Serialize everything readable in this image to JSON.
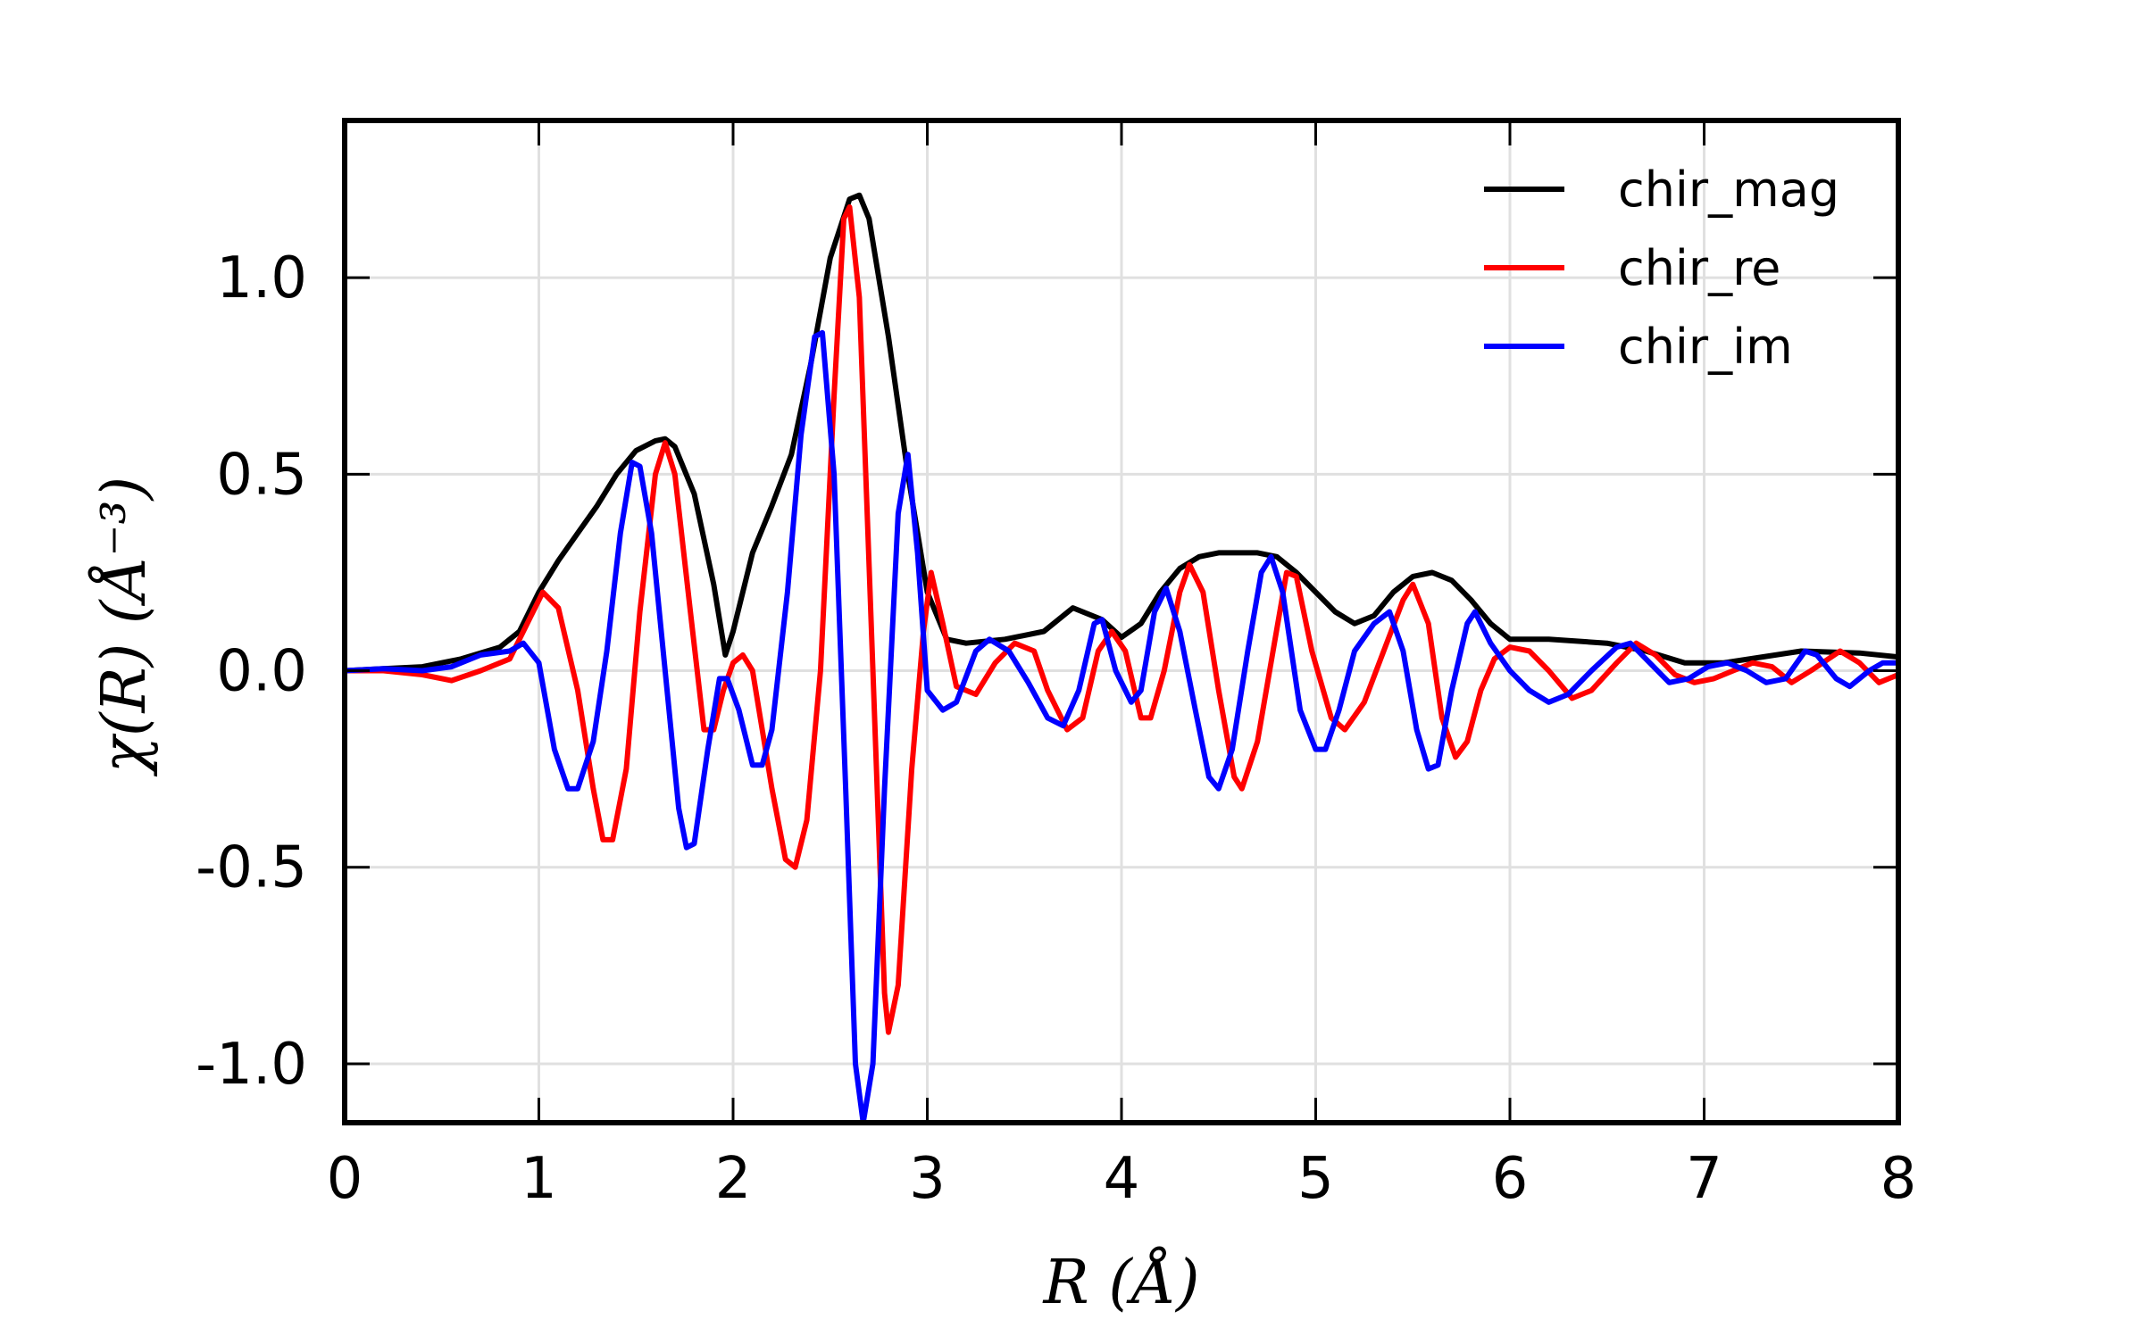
{
  "chart_data": {
    "type": "line",
    "xlabel": "R (Å)",
    "ylabel": "χ(R) (Å⁻³)",
    "xlim": [
      0,
      8
    ],
    "ylim": [
      -1.15,
      1.4
    ],
    "xticks": [
      0,
      1,
      2,
      3,
      4,
      5,
      6,
      7,
      8
    ],
    "xtick_labels": [
      "0",
      "1",
      "2",
      "3",
      "4",
      "5",
      "6",
      "7",
      "8"
    ],
    "yticks": [
      -1.0,
      -0.5,
      0.0,
      0.5,
      1.0
    ],
    "ytick_labels": [
      "-1.0",
      "-0.5",
      "0.0",
      "0.5",
      "1.0"
    ],
    "grid": true,
    "legend_position": "top-right",
    "series": [
      {
        "name": "chir_mag",
        "color": "#000000",
        "points": [
          [
            0,
            0
          ],
          [
            0.2,
            0.005
          ],
          [
            0.4,
            0.01
          ],
          [
            0.6,
            0.03
          ],
          [
            0.8,
            0.06
          ],
          [
            0.9,
            0.1
          ],
          [
            1.0,
            0.2
          ],
          [
            1.1,
            0.28
          ],
          [
            1.2,
            0.35
          ],
          [
            1.3,
            0.42
          ],
          [
            1.4,
            0.5
          ],
          [
            1.5,
            0.56
          ],
          [
            1.6,
            0.585
          ],
          [
            1.65,
            0.59
          ],
          [
            1.7,
            0.57
          ],
          [
            1.8,
            0.45
          ],
          [
            1.9,
            0.22
          ],
          [
            1.96,
            0.04
          ],
          [
            2.0,
            0.1
          ],
          [
            2.1,
            0.3
          ],
          [
            2.2,
            0.42
          ],
          [
            2.3,
            0.55
          ],
          [
            2.4,
            0.78
          ],
          [
            2.5,
            1.05
          ],
          [
            2.6,
            1.2
          ],
          [
            2.65,
            1.21
          ],
          [
            2.7,
            1.15
          ],
          [
            2.8,
            0.85
          ],
          [
            2.9,
            0.5
          ],
          [
            3.0,
            0.2
          ],
          [
            3.1,
            0.08
          ],
          [
            3.2,
            0.07
          ],
          [
            3.4,
            0.08
          ],
          [
            3.6,
            0.1
          ],
          [
            3.75,
            0.16
          ],
          [
            3.9,
            0.13
          ],
          [
            4.0,
            0.085
          ],
          [
            4.1,
            0.12
          ],
          [
            4.2,
            0.2
          ],
          [
            4.3,
            0.26
          ],
          [
            4.4,
            0.29
          ],
          [
            4.5,
            0.3
          ],
          [
            4.7,
            0.3
          ],
          [
            4.8,
            0.29
          ],
          [
            4.9,
            0.25
          ],
          [
            5.0,
            0.2
          ],
          [
            5.1,
            0.15
          ],
          [
            5.2,
            0.12
          ],
          [
            5.3,
            0.14
          ],
          [
            5.4,
            0.2
          ],
          [
            5.5,
            0.24
          ],
          [
            5.6,
            0.25
          ],
          [
            5.7,
            0.23
          ],
          [
            5.8,
            0.18
          ],
          [
            5.9,
            0.12
          ],
          [
            6.0,
            0.08
          ],
          [
            6.2,
            0.08
          ],
          [
            6.5,
            0.07
          ],
          [
            6.7,
            0.05
          ],
          [
            6.9,
            0.02
          ],
          [
            7.1,
            0.02
          ],
          [
            7.3,
            0.035
          ],
          [
            7.5,
            0.05
          ],
          [
            7.8,
            0.045
          ],
          [
            8.0,
            0.035
          ]
        ]
      },
      {
        "name": "chir_re",
        "color": "#ff0000",
        "points": [
          [
            0,
            0
          ],
          [
            0.2,
            0.0
          ],
          [
            0.4,
            -0.01
          ],
          [
            0.55,
            -0.025
          ],
          [
            0.7,
            0.0
          ],
          [
            0.85,
            0.03
          ],
          [
            0.95,
            0.13
          ],
          [
            1.02,
            0.2
          ],
          [
            1.1,
            0.16
          ],
          [
            1.2,
            -0.05
          ],
          [
            1.28,
            -0.3
          ],
          [
            1.33,
            -0.43
          ],
          [
            1.38,
            -0.43
          ],
          [
            1.45,
            -0.25
          ],
          [
            1.52,
            0.15
          ],
          [
            1.6,
            0.5
          ],
          [
            1.65,
            0.58
          ],
          [
            1.7,
            0.5
          ],
          [
            1.78,
            0.15
          ],
          [
            1.85,
            -0.15
          ],
          [
            1.9,
            -0.15
          ],
          [
            1.95,
            -0.05
          ],
          [
            2.0,
            0.02
          ],
          [
            2.05,
            0.04
          ],
          [
            2.1,
            0.0
          ],
          [
            2.2,
            -0.3
          ],
          [
            2.27,
            -0.48
          ],
          [
            2.32,
            -0.5
          ],
          [
            2.38,
            -0.38
          ],
          [
            2.45,
            0.0
          ],
          [
            2.52,
            0.7
          ],
          [
            2.57,
            1.15
          ],
          [
            2.6,
            1.18
          ],
          [
            2.65,
            0.95
          ],
          [
            2.72,
            0.0
          ],
          [
            2.78,
            -0.82
          ],
          [
            2.8,
            -0.92
          ],
          [
            2.85,
            -0.8
          ],
          [
            2.92,
            -0.25
          ],
          [
            2.98,
            0.1
          ],
          [
            3.02,
            0.25
          ],
          [
            3.08,
            0.12
          ],
          [
            3.15,
            -0.04
          ],
          [
            3.25,
            -0.06
          ],
          [
            3.35,
            0.02
          ],
          [
            3.45,
            0.07
          ],
          [
            3.55,
            0.05
          ],
          [
            3.62,
            -0.05
          ],
          [
            3.72,
            -0.15
          ],
          [
            3.8,
            -0.12
          ],
          [
            3.88,
            0.05
          ],
          [
            3.95,
            0.1
          ],
          [
            4.02,
            0.05
          ],
          [
            4.1,
            -0.12
          ],
          [
            4.15,
            -0.12
          ],
          [
            4.22,
            0.0
          ],
          [
            4.3,
            0.2
          ],
          [
            4.35,
            0.27
          ],
          [
            4.42,
            0.2
          ],
          [
            4.5,
            -0.05
          ],
          [
            4.58,
            -0.27
          ],
          [
            4.62,
            -0.3
          ],
          [
            4.7,
            -0.18
          ],
          [
            4.78,
            0.05
          ],
          [
            4.85,
            0.25
          ],
          [
            4.9,
            0.24
          ],
          [
            4.98,
            0.05
          ],
          [
            5.08,
            -0.12
          ],
          [
            5.15,
            -0.15
          ],
          [
            5.25,
            -0.08
          ],
          [
            5.35,
            0.05
          ],
          [
            5.45,
            0.18
          ],
          [
            5.5,
            0.22
          ],
          [
            5.58,
            0.12
          ],
          [
            5.65,
            -0.12
          ],
          [
            5.72,
            -0.22
          ],
          [
            5.78,
            -0.18
          ],
          [
            5.85,
            -0.05
          ],
          [
            5.92,
            0.03
          ],
          [
            6.0,
            0.06
          ],
          [
            6.1,
            0.05
          ],
          [
            6.2,
            0.0
          ],
          [
            6.32,
            -0.07
          ],
          [
            6.42,
            -0.05
          ],
          [
            6.55,
            0.02
          ],
          [
            6.65,
            0.07
          ],
          [
            6.75,
            0.04
          ],
          [
            6.85,
            -0.01
          ],
          [
            6.95,
            -0.03
          ],
          [
            7.05,
            -0.02
          ],
          [
            7.15,
            0.0
          ],
          [
            7.25,
            0.02
          ],
          [
            7.35,
            0.01
          ],
          [
            7.45,
            -0.03
          ],
          [
            7.55,
            0.0
          ],
          [
            7.7,
            0.05
          ],
          [
            7.8,
            0.02
          ],
          [
            7.9,
            -0.03
          ],
          [
            8.0,
            -0.01
          ]
        ]
      },
      {
        "name": "chir_im",
        "color": "#0000ff",
        "points": [
          [
            0,
            0
          ],
          [
            0.2,
            0.005
          ],
          [
            0.4,
            0.0
          ],
          [
            0.55,
            0.01
          ],
          [
            0.7,
            0.04
          ],
          [
            0.85,
            0.05
          ],
          [
            0.92,
            0.07
          ],
          [
            1.0,
            0.02
          ],
          [
            1.08,
            -0.2
          ],
          [
            1.15,
            -0.3
          ],
          [
            1.2,
            -0.3
          ],
          [
            1.28,
            -0.18
          ],
          [
            1.35,
            0.05
          ],
          [
            1.42,
            0.35
          ],
          [
            1.48,
            0.53
          ],
          [
            1.52,
            0.52
          ],
          [
            1.58,
            0.35
          ],
          [
            1.65,
            0.0
          ],
          [
            1.72,
            -0.35
          ],
          [
            1.76,
            -0.45
          ],
          [
            1.8,
            -0.44
          ],
          [
            1.87,
            -0.2
          ],
          [
            1.93,
            -0.02
          ],
          [
            1.97,
            -0.02
          ],
          [
            2.03,
            -0.1
          ],
          [
            2.1,
            -0.24
          ],
          [
            2.15,
            -0.24
          ],
          [
            2.2,
            -0.15
          ],
          [
            2.28,
            0.2
          ],
          [
            2.35,
            0.6
          ],
          [
            2.42,
            0.85
          ],
          [
            2.46,
            0.86
          ],
          [
            2.52,
            0.5
          ],
          [
            2.58,
            -0.3
          ],
          [
            2.63,
            -1.0
          ],
          [
            2.67,
            -1.15
          ],
          [
            2.72,
            -1.0
          ],
          [
            2.78,
            -0.3
          ],
          [
            2.85,
            0.4
          ],
          [
            2.9,
            0.55
          ],
          [
            2.95,
            0.3
          ],
          [
            3.0,
            -0.05
          ],
          [
            3.08,
            -0.1
          ],
          [
            3.15,
            -0.08
          ],
          [
            3.25,
            0.05
          ],
          [
            3.32,
            0.08
          ],
          [
            3.42,
            0.05
          ],
          [
            3.52,
            -0.03
          ],
          [
            3.62,
            -0.12
          ],
          [
            3.7,
            -0.14
          ],
          [
            3.78,
            -0.05
          ],
          [
            3.86,
            0.12
          ],
          [
            3.9,
            0.13
          ],
          [
            3.97,
            0.0
          ],
          [
            4.05,
            -0.08
          ],
          [
            4.1,
            -0.05
          ],
          [
            4.17,
            0.15
          ],
          [
            4.23,
            0.21
          ],
          [
            4.3,
            0.1
          ],
          [
            4.38,
            -0.1
          ],
          [
            4.45,
            -0.27
          ],
          [
            4.5,
            -0.3
          ],
          [
            4.57,
            -0.2
          ],
          [
            4.65,
            0.05
          ],
          [
            4.72,
            0.25
          ],
          [
            4.77,
            0.29
          ],
          [
            4.83,
            0.2
          ],
          [
            4.92,
            -0.1
          ],
          [
            5.0,
            -0.2
          ],
          [
            5.05,
            -0.2
          ],
          [
            5.12,
            -0.1
          ],
          [
            5.2,
            0.05
          ],
          [
            5.3,
            0.12
          ],
          [
            5.38,
            0.15
          ],
          [
            5.45,
            0.05
          ],
          [
            5.52,
            -0.15
          ],
          [
            5.58,
            -0.25
          ],
          [
            5.63,
            -0.24
          ],
          [
            5.7,
            -0.05
          ],
          [
            5.78,
            0.12
          ],
          [
            5.82,
            0.15
          ],
          [
            5.9,
            0.07
          ],
          [
            6.0,
            0.0
          ],
          [
            6.1,
            -0.05
          ],
          [
            6.2,
            -0.08
          ],
          [
            6.3,
            -0.06
          ],
          [
            6.42,
            0.0
          ],
          [
            6.55,
            0.06
          ],
          [
            6.62,
            0.07
          ],
          [
            6.72,
            0.02
          ],
          [
            6.82,
            -0.03
          ],
          [
            6.92,
            -0.02
          ],
          [
            7.02,
            0.01
          ],
          [
            7.12,
            0.02
          ],
          [
            7.22,
            0.0
          ],
          [
            7.32,
            -0.03
          ],
          [
            7.42,
            -0.02
          ],
          [
            7.52,
            0.05
          ],
          [
            7.58,
            0.04
          ],
          [
            7.68,
            -0.02
          ],
          [
            7.75,
            -0.04
          ],
          [
            7.85,
            0.0
          ],
          [
            7.92,
            0.02
          ],
          [
            8.0,
            0.02
          ]
        ]
      }
    ]
  }
}
